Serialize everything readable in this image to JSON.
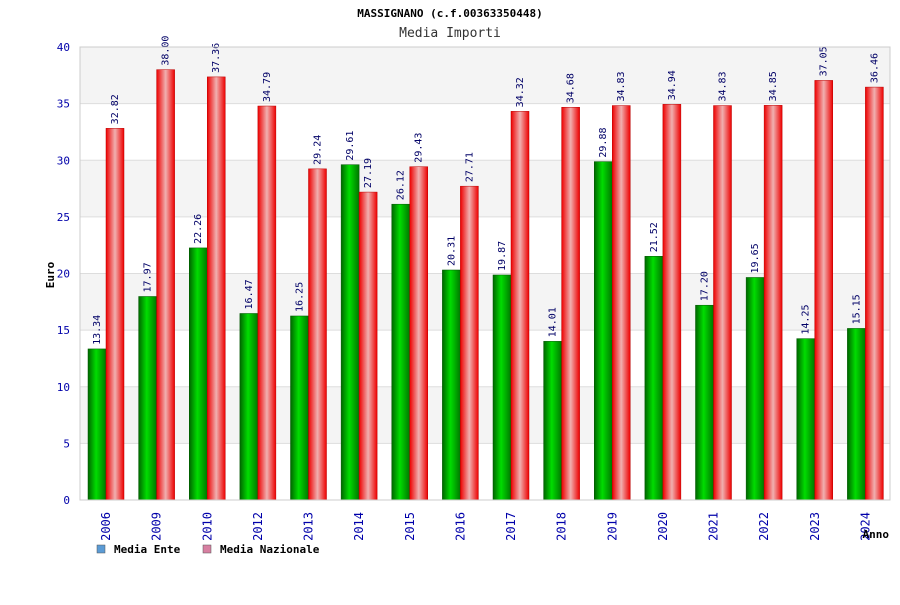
{
  "chart_data": {
    "type": "bar",
    "title": "MASSIGNANO (c.f.00363350448)",
    "subtitle": "Media Importi",
    "xlabel": "Anno",
    "ylabel": "Euro",
    "ylim": [
      0,
      40
    ],
    "yticks": [
      0,
      5,
      10,
      15,
      20,
      25,
      30,
      35,
      40
    ],
    "grid": true,
    "legend_position": "bottom-left",
    "categories": [
      "2006",
      "2009",
      "2010",
      "2012",
      "2013",
      "2014",
      "2015",
      "2016",
      "2017",
      "2018",
      "2019",
      "2020",
      "2021",
      "2022",
      "2023",
      "2024"
    ],
    "series": [
      {
        "name": "Media Ente",
        "legend_color": "#5b9bd5",
        "color": "#00aa00",
        "values": [
          13.34,
          17.97,
          22.26,
          16.47,
          16.25,
          29.61,
          26.12,
          20.31,
          19.87,
          14.01,
          29.88,
          21.52,
          17.2,
          19.65,
          14.25,
          15.15
        ],
        "labels": [
          "13.34",
          "17.97",
          "22.26",
          "16.47",
          "16.25",
          "29.61",
          "26.12",
          "20.31",
          "19.87",
          "14.01",
          "29.88",
          "21.52",
          "17.20",
          "19.65",
          "14.25",
          "15.15"
        ]
      },
      {
        "name": "Media Nazionale",
        "legend_color": "#d77fa1",
        "color": "#dd0000",
        "values": [
          32.82,
          38.0,
          37.36,
          34.79,
          29.24,
          27.19,
          29.43,
          27.71,
          34.32,
          34.68,
          34.83,
          34.94,
          34.83,
          34.85,
          37.05,
          36.46
        ],
        "labels": [
          "32.82",
          "38.00",
          "37.36",
          "34.79",
          "29.24",
          "27.19",
          "29.43",
          "27.71",
          "34.32",
          "34.68",
          "34.83",
          "34.94",
          "34.83",
          "34.85",
          "37.05",
          "36.46"
        ]
      }
    ]
  }
}
